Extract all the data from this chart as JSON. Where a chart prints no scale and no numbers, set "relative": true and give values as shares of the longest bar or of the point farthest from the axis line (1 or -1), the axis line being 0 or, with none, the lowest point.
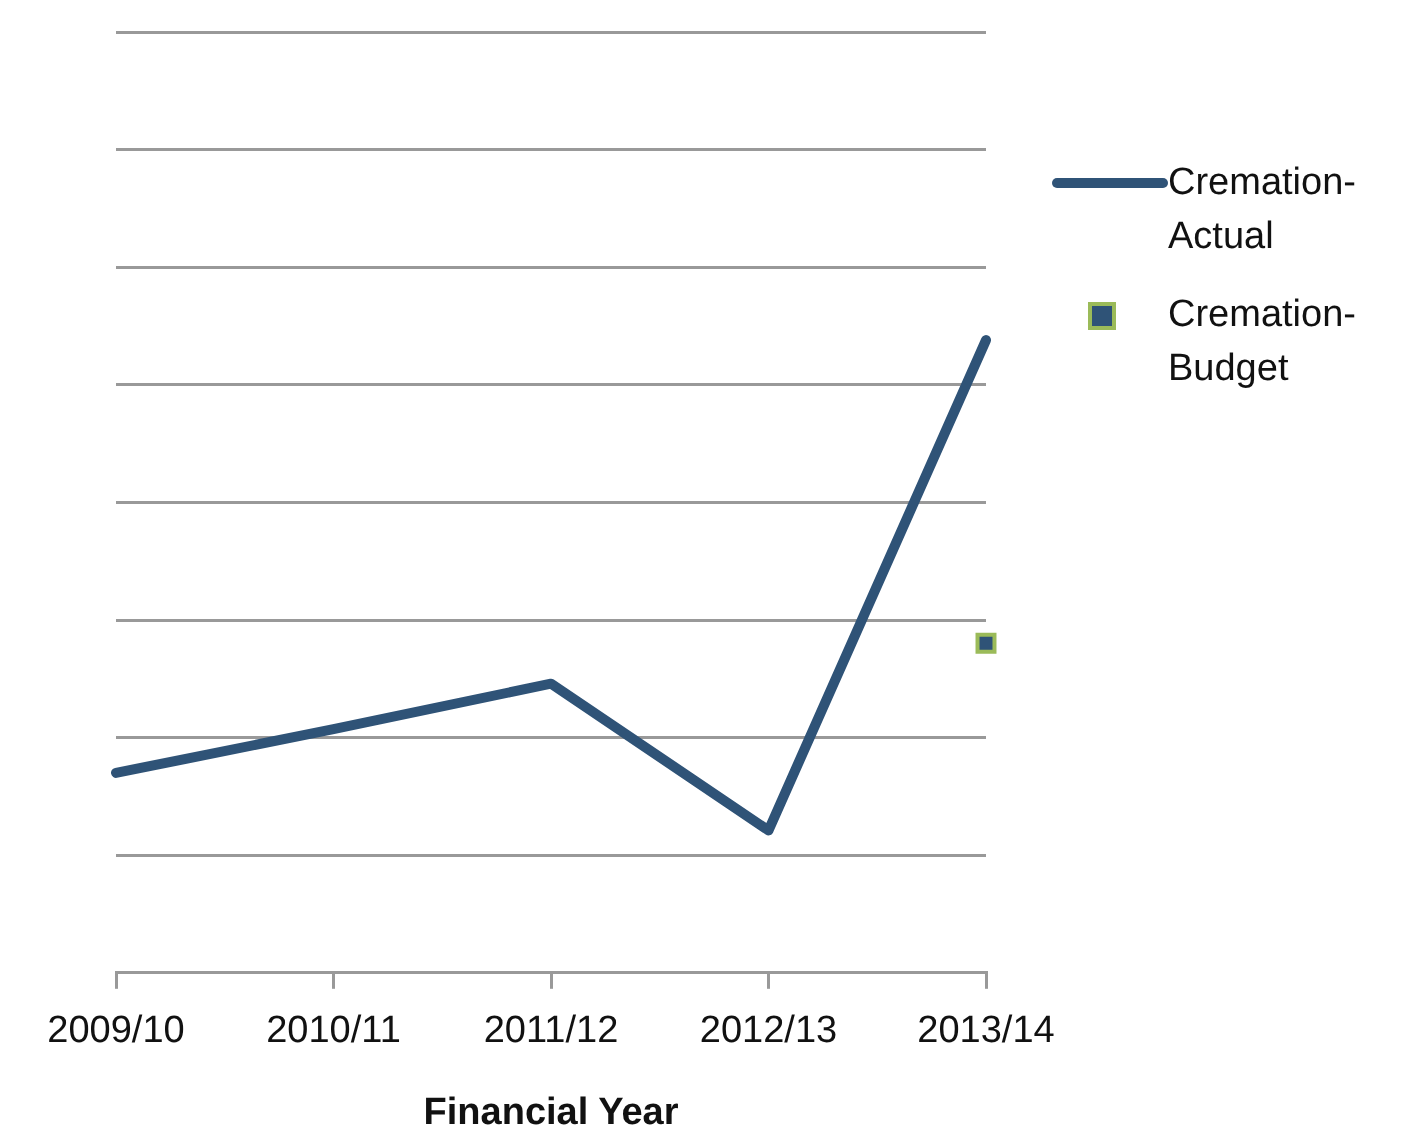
{
  "chart_data": {
    "type": "line",
    "xlabel": "Financial Year",
    "categories": [
      "2009/10",
      "2010/11",
      "2011/12",
      "2012/13",
      "2013/14"
    ],
    "relative": true,
    "grid": "y",
    "legend": "right",
    "series": [
      {
        "name": "Cremation-Actual",
        "type": "line",
        "color": "#2f5377",
        "marker": "none",
        "line_style": "solid",
        "values": [
          0.316,
          0.385,
          0.457,
          0.225,
          1
        ]
      },
      {
        "name": "Cremation-Budget",
        "type": "scatter",
        "color": "#2f5377",
        "marker": "square",
        "values": [
          null,
          null,
          null,
          null,
          0.521
        ]
      }
    ]
  }
}
